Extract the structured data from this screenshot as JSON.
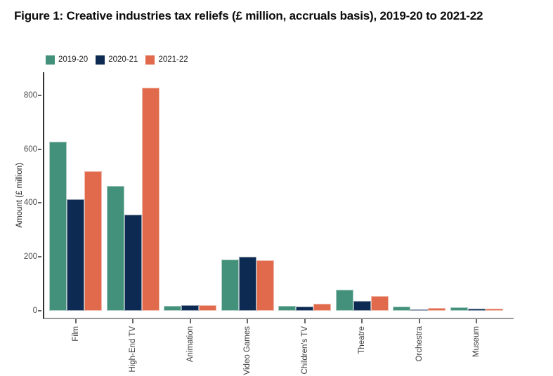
{
  "figure": {
    "title": "Figure 1: Creative industries tax reliefs (£ million, accruals basis), 2019-20 to 2021-22"
  },
  "chart_data": {
    "type": "bar",
    "title": "Figure 1: Creative industries tax reliefs (£ million, accruals basis), 2019-20 to 2021-22",
    "categories": [
      "Film",
      "High-End TV",
      "Animation",
      "Video Games",
      "Children's TV",
      "Theatre",
      "Orchestra",
      "Museum"
    ],
    "series": [
      {
        "name": "2019-20",
        "color": "#43917A",
        "values": [
          628,
          464,
          18,
          191,
          17,
          78,
          16,
          12
        ]
      },
      {
        "name": "2020-21",
        "color": "#0D2B52",
        "values": [
          415,
          357,
          21,
          200,
          15,
          37,
          6,
          8
        ]
      },
      {
        "name": "2021-22",
        "color": "#E06A4B",
        "values": [
          517,
          829,
          20,
          188,
          27,
          55,
          11,
          9
        ]
      }
    ],
    "xlabel": "",
    "ylabel": "Amount (£ million)",
    "yticks": [
      0,
      200,
      400,
      600,
      800
    ],
    "ylim": [
      0,
      888
    ],
    "grid": false,
    "legend_position": "top-left",
    "bar_outline_color": "rgba(255,255,255,0.55)",
    "axis_left_color": "#333333",
    "axis_bottom_color": "#999999"
  }
}
